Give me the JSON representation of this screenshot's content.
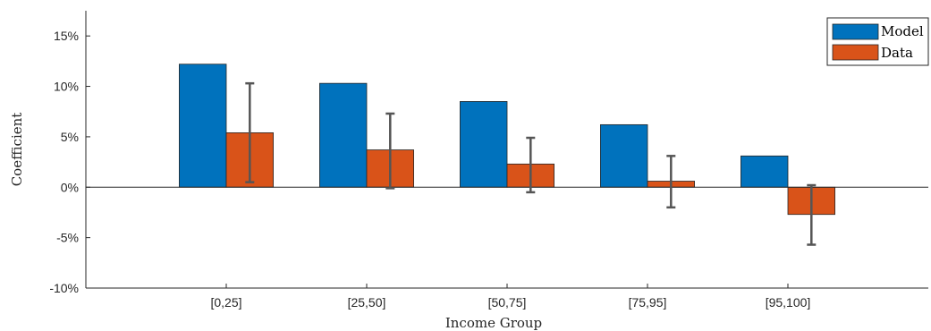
{
  "chart_data": {
    "type": "bar",
    "categories": [
      "[0,25]",
      "[25,50]",
      "[50,75]",
      "[75,95]",
      "[95,100]"
    ],
    "series": [
      {
        "name": "Model",
        "values": [
          12.2,
          10.3,
          8.5,
          6.2,
          3.1
        ],
        "color": "#0072BD"
      },
      {
        "name": "Data",
        "values": [
          5.4,
          3.7,
          2.3,
          0.6,
          -2.7
        ],
        "color": "#D95319",
        "error_low": [
          0.5,
          -0.1,
          -0.5,
          -2.0,
          -5.7
        ],
        "error_high": [
          10.3,
          7.3,
          4.9,
          3.1,
          0.2
        ]
      }
    ],
    "yticks": [
      -10,
      -5,
      0,
      5,
      10,
      15
    ],
    "ytick_labels": [
      "-10%",
      "-5%",
      "0%",
      "5%",
      "10%",
      "15%"
    ],
    "xlabel": "Income Group",
    "ylabel": "Coefficient",
    "ylim": [
      -10,
      17.5
    ],
    "xlim": [
      0,
      6
    ],
    "zero_line": true,
    "grid": false,
    "legend_position": "top-right",
    "error_bar_color": "#555555"
  }
}
